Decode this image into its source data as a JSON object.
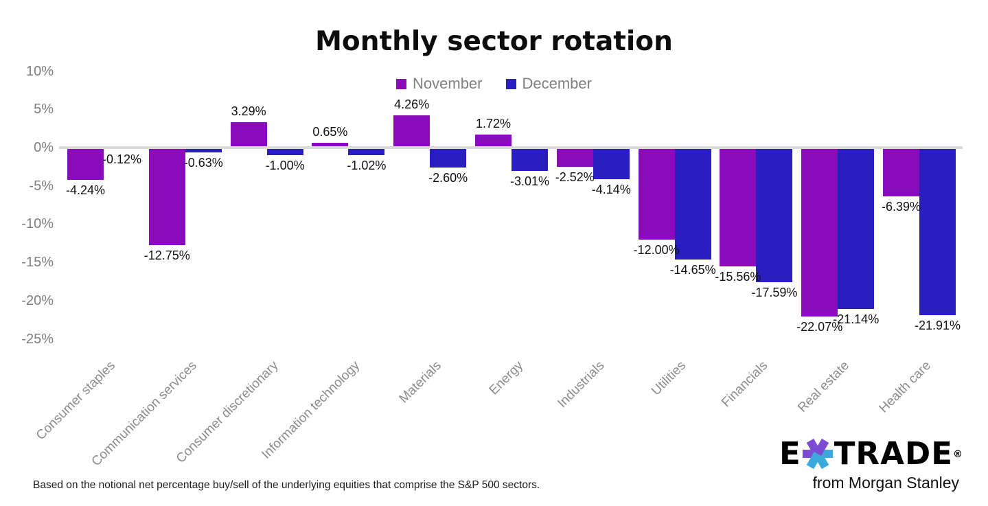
{
  "title": "Monthly sector rotation",
  "legend": {
    "items": [
      {
        "label": "November",
        "color": "#8A0BB9"
      },
      {
        "label": "December",
        "color": "#2B1EC0"
      }
    ]
  },
  "y_axis_ticks": [
    "10%",
    "5%",
    "0%",
    "-5%",
    "-10%",
    "-15%",
    "-20%",
    "-25%"
  ],
  "chart_data": {
    "type": "bar",
    "title": "Monthly sector rotation",
    "categories": [
      "Consumer staples",
      "Communication services",
      "Consumer discretionary",
      "Information technology",
      "Materials",
      "Energy",
      "Industrials",
      "Utilities",
      "Financials",
      "Real estate",
      "Health care"
    ],
    "series": [
      {
        "name": "November",
        "color": "#8A0BB9",
        "values": [
          -4.24,
          -12.75,
          3.29,
          0.65,
          4.26,
          1.72,
          -2.52,
          -12.0,
          -15.56,
          -22.07,
          -6.39
        ],
        "labels": [
          "-4.24%",
          "-12.75%",
          "3.29%",
          "0.65%",
          "4.26%",
          "1.72%",
          "-2.52%",
          "-12.00%",
          "-15.56%",
          "-22.07%",
          "-6.39%"
        ]
      },
      {
        "name": "December",
        "color": "#2B1EC0",
        "values": [
          -0.12,
          -0.63,
          -1.0,
          -1.02,
          -2.6,
          -3.01,
          -4.14,
          -14.65,
          -17.59,
          -21.14,
          -21.91
        ],
        "labels": [
          "-0.12%",
          "-0.63%",
          "-1.00%",
          "-1.02%",
          "-2.60%",
          "-3.01%",
          "-4.14%",
          "-14.65%",
          "-17.59%",
          "-21.14%",
          "-21.91%"
        ]
      }
    ],
    "ylim": [
      -25,
      10
    ],
    "y_tick_step": 5,
    "grid": false,
    "legend_position": "top-center",
    "zero_line_color": "#DADADA",
    "axis_text_color": "#7E7E7E",
    "category_text_color": "#8C8C8C",
    "data_label_color": "#111111"
  },
  "footnote": "Based on the notional net percentage buy/sell of the underlying equities that comprise the S&P 500 sectors.",
  "logo": {
    "brand_e": "E",
    "brand_trade": "TRADE",
    "registered": "®",
    "subtitle": "from Morgan Stanley",
    "asterisk_purple": "#7B4BD3",
    "asterisk_cyan": "#3BA9DC"
  }
}
